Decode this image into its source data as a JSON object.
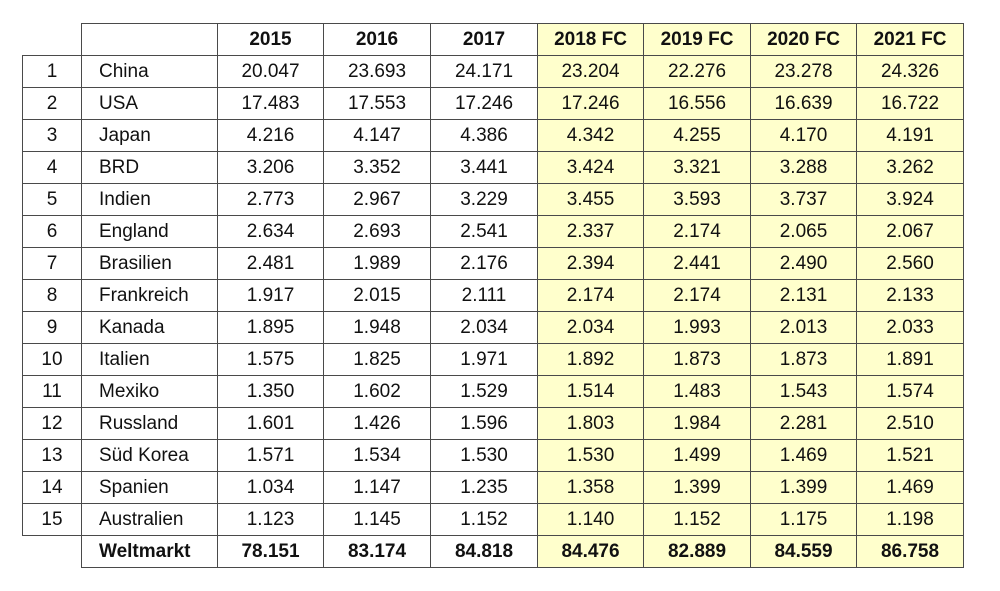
{
  "colors": {
    "forecast_bg": "#ffffcc",
    "border": "#4a4a4a"
  },
  "columns": [
    "2015",
    "2016",
    "2017",
    "2018 FC",
    "2019 FC",
    "2020 FC",
    "2021 FC"
  ],
  "forecast_from_index": 3,
  "rows": [
    {
      "rank": "1",
      "country": "China",
      "values": [
        "20.047",
        "23.693",
        "24.171",
        "23.204",
        "22.276",
        "23.278",
        "24.326"
      ]
    },
    {
      "rank": "2",
      "country": "USA",
      "values": [
        "17.483",
        "17.553",
        "17.246",
        "17.246",
        "16.556",
        "16.639",
        "16.722"
      ]
    },
    {
      "rank": "3",
      "country": "Japan",
      "values": [
        "4.216",
        "4.147",
        "4.386",
        "4.342",
        "4.255",
        "4.170",
        "4.191"
      ]
    },
    {
      "rank": "4",
      "country": "BRD",
      "values": [
        "3.206",
        "3.352",
        "3.441",
        "3.424",
        "3.321",
        "3.288",
        "3.262"
      ]
    },
    {
      "rank": "5",
      "country": "Indien",
      "values": [
        "2.773",
        "2.967",
        "3.229",
        "3.455",
        "3.593",
        "3.737",
        "3.924"
      ]
    },
    {
      "rank": "6",
      "country": "England",
      "values": [
        "2.634",
        "2.693",
        "2.541",
        "2.337",
        "2.174",
        "2.065",
        "2.067"
      ]
    },
    {
      "rank": "7",
      "country": "Brasilien",
      "values": [
        "2.481",
        "1.989",
        "2.176",
        "2.394",
        "2.441",
        "2.490",
        "2.560"
      ]
    },
    {
      "rank": "8",
      "country": "Frankreich",
      "values": [
        "1.917",
        "2.015",
        "2.111",
        "2.174",
        "2.174",
        "2.131",
        "2.133"
      ]
    },
    {
      "rank": "9",
      "country": "Kanada",
      "values": [
        "1.895",
        "1.948",
        "2.034",
        "2.034",
        "1.993",
        "2.013",
        "2.033"
      ]
    },
    {
      "rank": "10",
      "country": "Italien",
      "values": [
        "1.575",
        "1.825",
        "1.971",
        "1.892",
        "1.873",
        "1.873",
        "1.891"
      ]
    },
    {
      "rank": "11",
      "country": "Mexiko",
      "values": [
        "1.350",
        "1.602",
        "1.529",
        "1.514",
        "1.483",
        "1.543",
        "1.574"
      ]
    },
    {
      "rank": "12",
      "country": "Russland",
      "values": [
        "1.601",
        "1.426",
        "1.596",
        "1.803",
        "1.984",
        "2.281",
        "2.510"
      ]
    },
    {
      "rank": "13",
      "country": "Süd Korea",
      "values": [
        "1.571",
        "1.534",
        "1.530",
        "1.530",
        "1.499",
        "1.469",
        "1.521"
      ]
    },
    {
      "rank": "14",
      "country": "Spanien",
      "values": [
        "1.034",
        "1.147",
        "1.235",
        "1.358",
        "1.399",
        "1.399",
        "1.469"
      ]
    },
    {
      "rank": "15",
      "country": "Australien",
      "values": [
        "1.123",
        "1.145",
        "1.152",
        "1.140",
        "1.152",
        "1.175",
        "1.198"
      ]
    }
  ],
  "total": {
    "label": "Weltmarkt",
    "values": [
      "78.151",
      "83.174",
      "84.818",
      "84.476",
      "82.889",
      "84.559",
      "86.758"
    ]
  }
}
